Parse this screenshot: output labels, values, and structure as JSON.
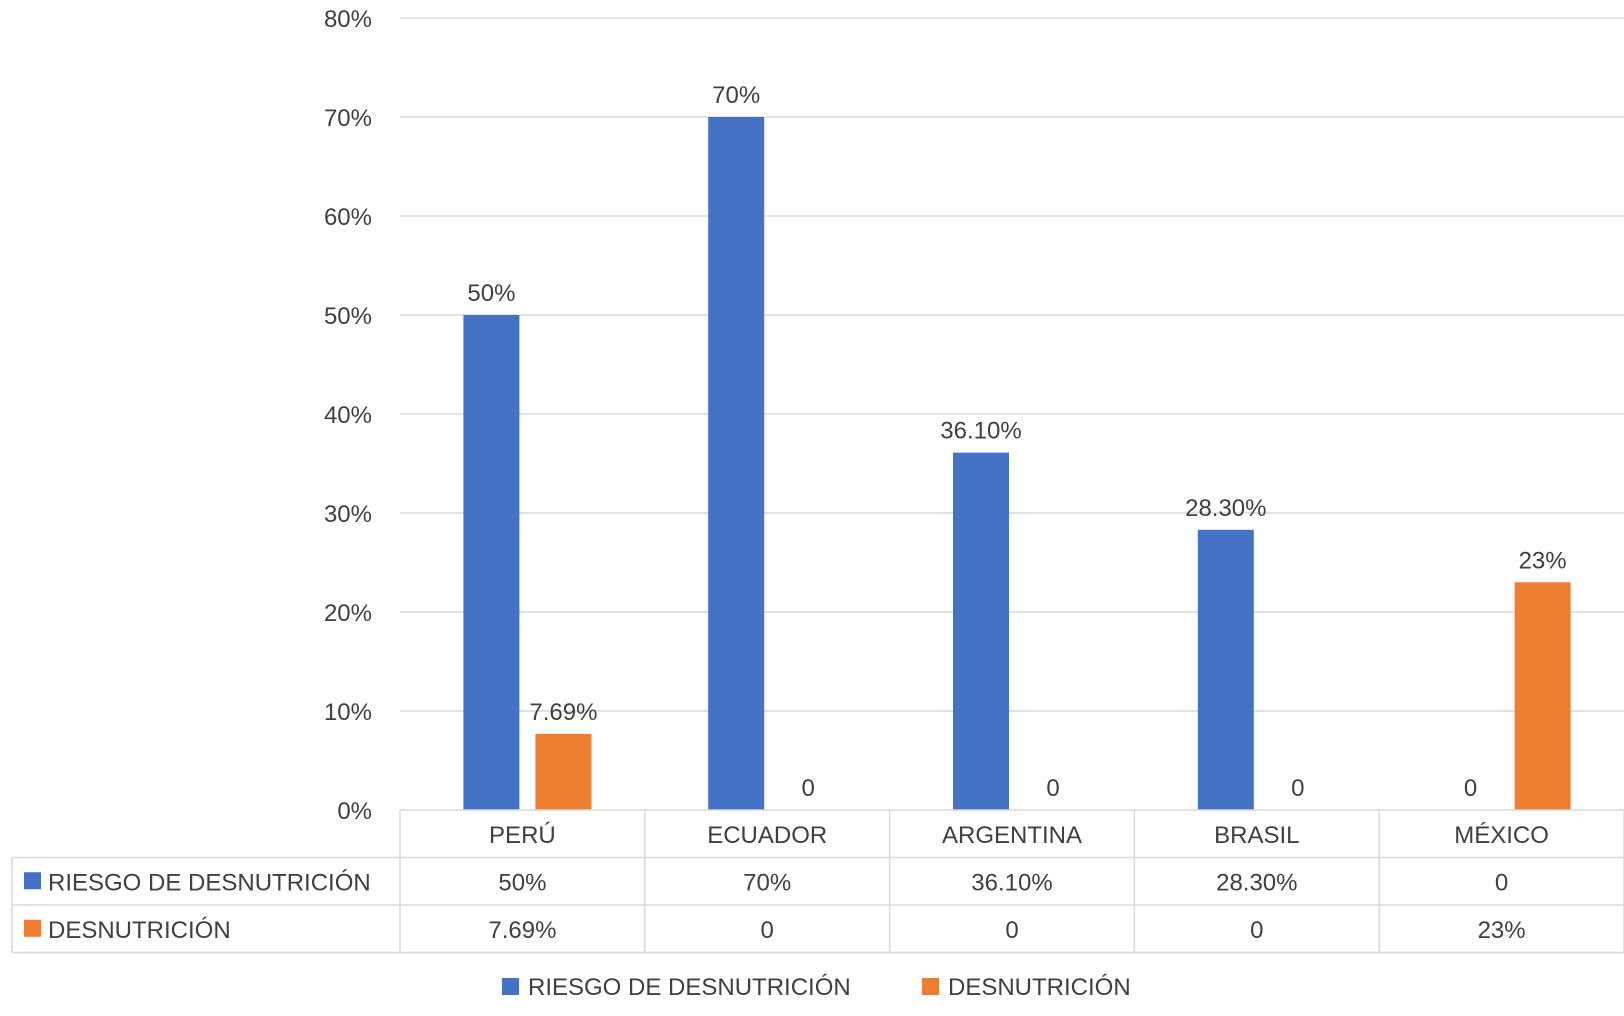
{
  "chart_data": {
    "type": "bar",
    "categories": [
      "PERÚ",
      "ECUADOR",
      "ARGENTINA",
      "BRASIL",
      "MÉXICO"
    ],
    "series": [
      {
        "name": "RIESGO DE DESNUTRICIÓN",
        "values": [
          50,
          70,
          36.1,
          28.3,
          0
        ],
        "labels": [
          "50%",
          "70%",
          "36.10%",
          "28.30%",
          "0"
        ],
        "color": "#4472c4"
      },
      {
        "name": "DESNUTRICIÓN",
        "values": [
          7.69,
          0,
          0,
          0,
          23
        ],
        "labels": [
          "7.69%",
          "0",
          "0",
          "0",
          "23%"
        ],
        "color": "#ed7d31"
      }
    ],
    "ylim": [
      0,
      80
    ],
    "yticks": [
      "0%",
      "10%",
      "20%",
      "30%",
      "40%",
      "50%",
      "60%",
      "70%",
      "80%"
    ],
    "grid": true,
    "legend": "bottom",
    "data_table": true
  }
}
